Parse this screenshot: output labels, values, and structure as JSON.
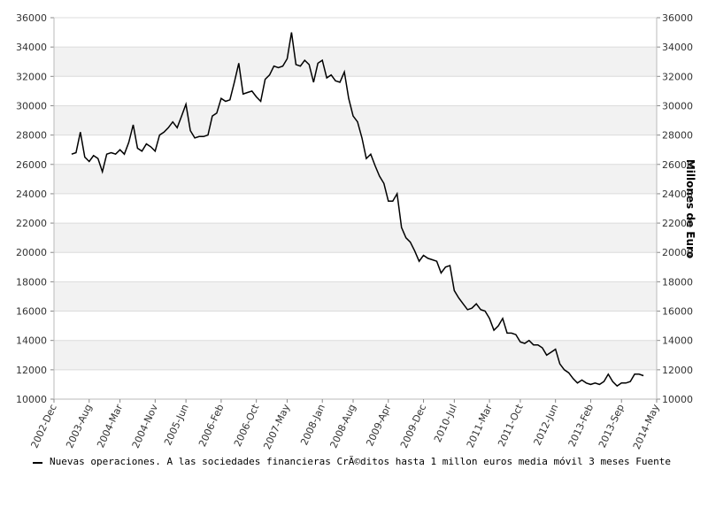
{
  "chart_data": {
    "type": "line",
    "y2_axis_label": "Millones de Euro",
    "categories": [
      "2002-Dec",
      null,
      null,
      null,
      null,
      null,
      null,
      null,
      "2003-Aug",
      null,
      null,
      null,
      null,
      null,
      null,
      "2004-Mar",
      null,
      null,
      null,
      null,
      null,
      null,
      null,
      "2004-Nov",
      null,
      null,
      null,
      null,
      null,
      null,
      "2005-Jun",
      null,
      null,
      null,
      null,
      null,
      null,
      null,
      "2006-Feb",
      null,
      null,
      null,
      null,
      null,
      null,
      null,
      "2006-Oct",
      null,
      null,
      null,
      null,
      null,
      null,
      "2007-May",
      null,
      null,
      null,
      null,
      null,
      null,
      null,
      "2008-Jan",
      null,
      null,
      null,
      null,
      null,
      null,
      "2008-Aug",
      null,
      null,
      null,
      null,
      null,
      null,
      null,
      "2009-Apr",
      null,
      null,
      null,
      null,
      null,
      null,
      null,
      "2009-Dec",
      null,
      null,
      null,
      null,
      null,
      null,
      "2010-Jul",
      null,
      null,
      null,
      null,
      null,
      null,
      null,
      "2011-Mar",
      null,
      null,
      null,
      null,
      null,
      null,
      "2011-Oct",
      null,
      null,
      null,
      null,
      null,
      null,
      null,
      "2012-Jun",
      null,
      null,
      null,
      null,
      null,
      null,
      null,
      "2013-Feb",
      null,
      null,
      null,
      null,
      null,
      null,
      "2013-Sep",
      null,
      null,
      null,
      null,
      null,
      null,
      null,
      "2014-May"
    ],
    "series": [
      {
        "name": "Nuevas operaciones. A las sociedades financieras CrÃ©ditos hasta 1 millon euros media móvil 3 meses  Fuente",
        "color": "#000000",
        "values": [
          null,
          null,
          null,
          null,
          26700,
          26800,
          28200,
          26500,
          26200,
          26600,
          26400,
          25500,
          26700,
          26800,
          26700,
          27000,
          26700,
          27500,
          28700,
          27100,
          26900,
          27400,
          27200,
          26900,
          28000,
          28200,
          28500,
          28900,
          28500,
          29300,
          30100,
          28300,
          27800,
          27900,
          27900,
          28000,
          29300,
          29500,
          30500,
          30300,
          30400,
          31600,
          32900,
          30800,
          30900,
          31000,
          30600,
          30300,
          31800,
          32100,
          32700,
          32600,
          32700,
          33200,
          35000,
          32800,
          32700,
          33100,
          32800,
          31600,
          32900,
          33100,
          31900,
          32100,
          31700,
          31600,
          32300,
          30500,
          29300,
          28900,
          27800,
          26400,
          26700,
          25900,
          25200,
          24700,
          23500,
          23500,
          24000,
          21700,
          21000,
          20700,
          20100,
          19400,
          19800,
          19600,
          19500,
          19400,
          18600,
          19000,
          19100,
          17400,
          16900,
          16500,
          16100,
          16200,
          16500,
          16100,
          16000,
          15500,
          14700,
          15000,
          15500,
          14500,
          14500,
          14400,
          13900,
          13800,
          14000,
          13700,
          13700,
          13500,
          13000,
          13200,
          13400,
          12400,
          12000,
          11800,
          11400,
          11100,
          11300,
          11100,
          11000,
          11100,
          11000,
          11200,
          11700,
          11200,
          10900,
          11100,
          11100,
          11200,
          11700,
          11700,
          11600,
          null,
          null,
          null
        ]
      }
    ],
    "ylim": [
      10000,
      36000
    ],
    "yticks": [
      10000,
      12000,
      14000,
      16000,
      18000,
      20000,
      22000,
      24000,
      26000,
      28000,
      30000,
      32000,
      34000,
      36000
    ],
    "y2lim": [
      10000,
      36000
    ],
    "y2ticks": [
      10000,
      12000,
      14000,
      16000,
      18000,
      20000,
      22000,
      24000,
      26000,
      28000,
      30000,
      32000,
      34000,
      36000
    ],
    "grid": true,
    "legend": "bottom"
  }
}
